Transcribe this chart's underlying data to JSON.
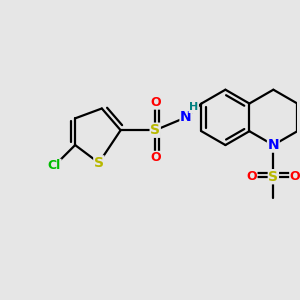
{
  "bg_color": "#e6e6e6",
  "bond_color": "#000000",
  "bond_width": 1.6,
  "atom_colors": {
    "S": "#b8b800",
    "O": "#ff0000",
    "N": "#0000ff",
    "H": "#008080",
    "Cl": "#00bb00",
    "C": "#000000"
  }
}
